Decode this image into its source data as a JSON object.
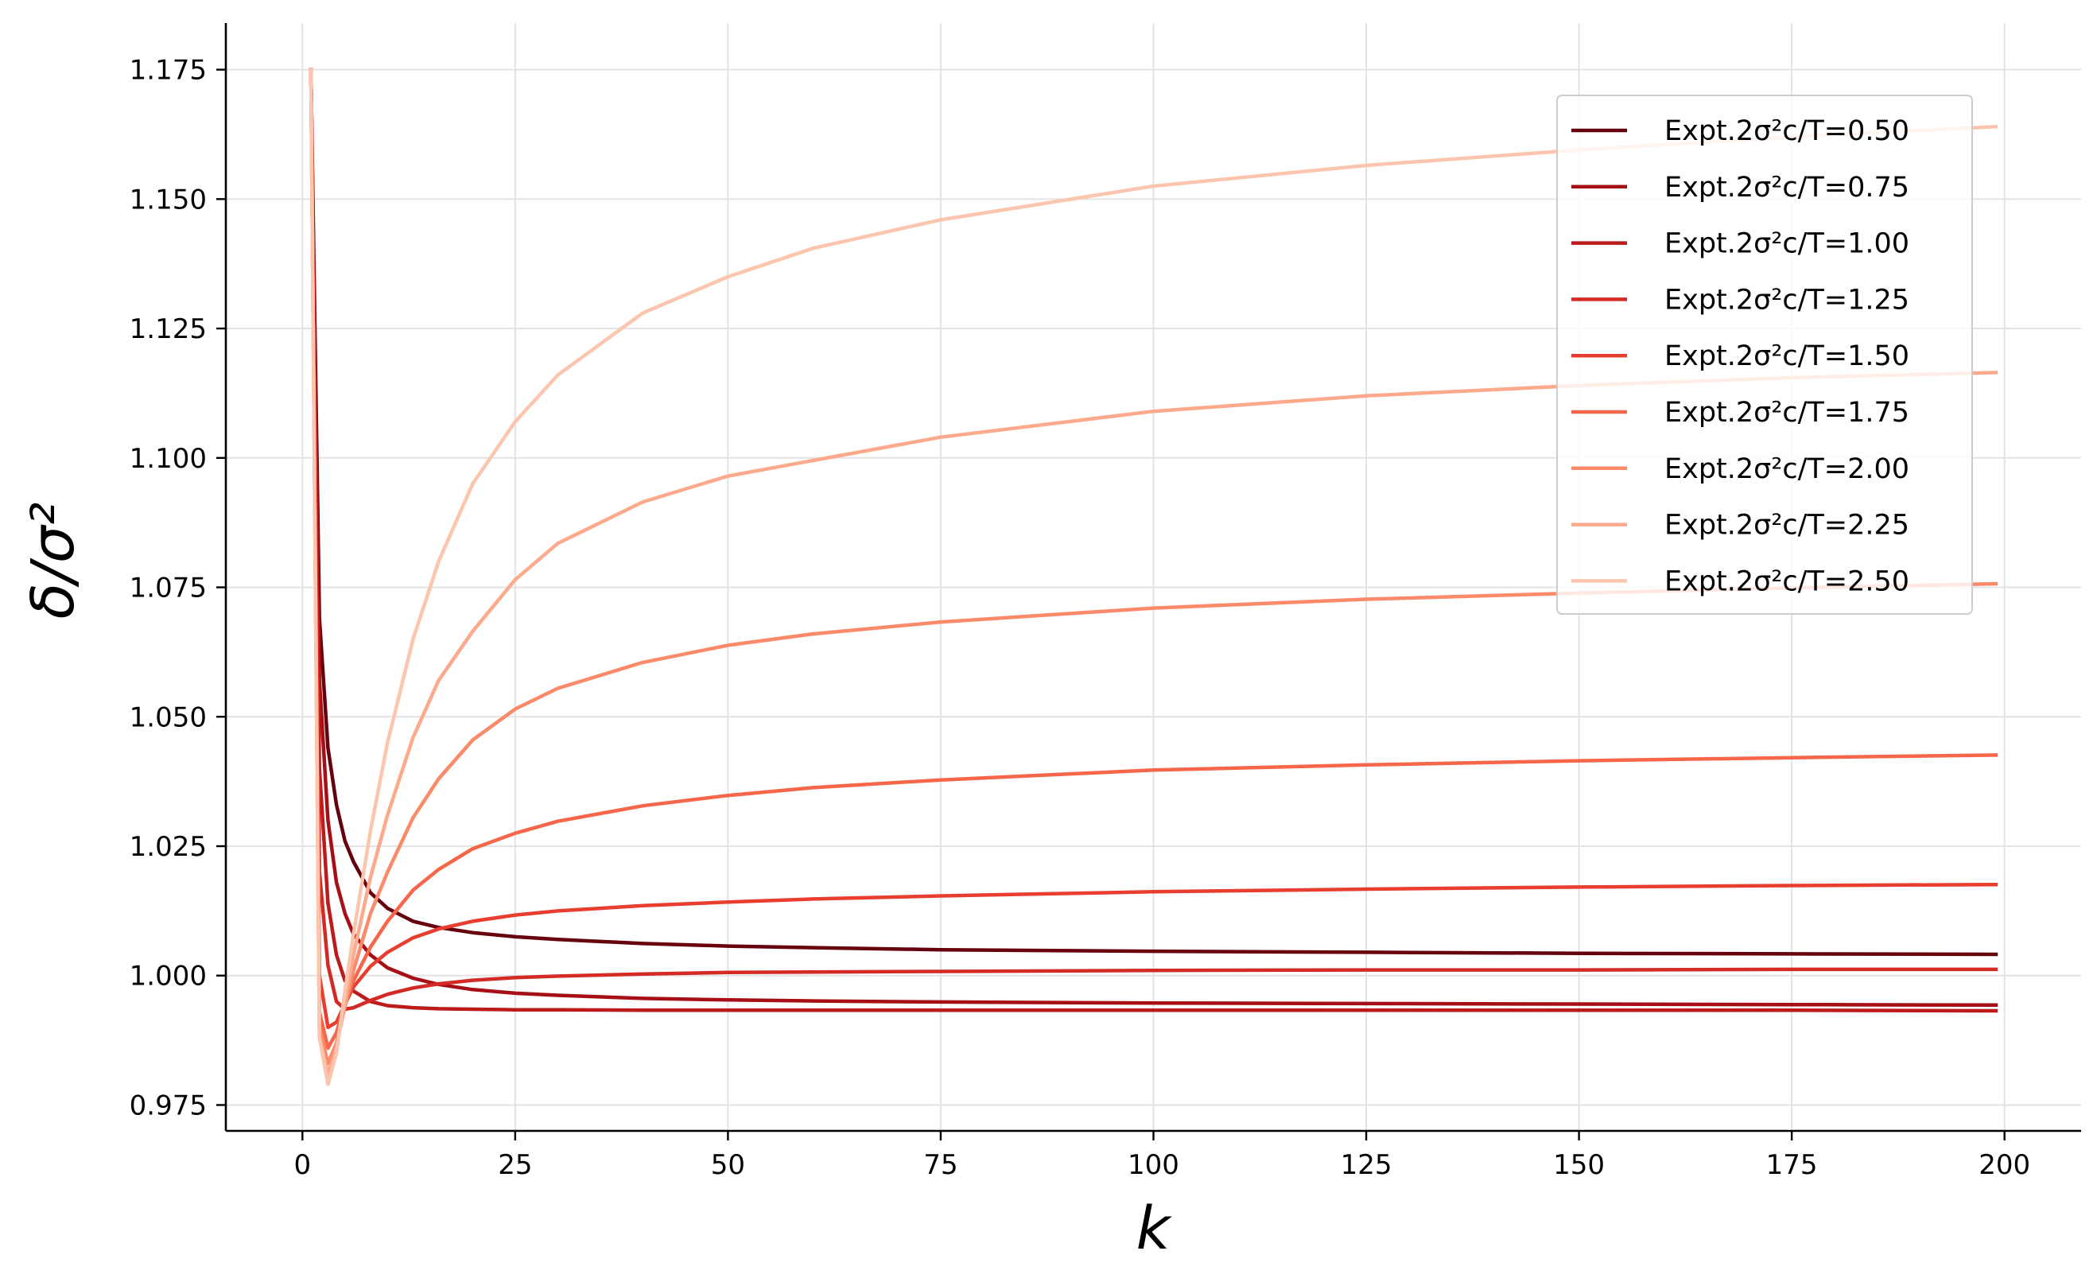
{
  "chart_data": {
    "type": "line",
    "xlabel": "k",
    "ylabel": "δ/σ²",
    "xlim": [
      -9,
      209
    ],
    "ylim": [
      0.97,
      1.184
    ],
    "x_ticks": [
      0,
      25,
      50,
      75,
      100,
      125,
      150,
      175,
      200
    ],
    "y_ticks": [
      0.975,
      1.0,
      1.025,
      1.05,
      1.075,
      1.1,
      1.125,
      1.15,
      1.175
    ],
    "y_tick_labels": [
      "0.975",
      "1.000",
      "1.025",
      "1.050",
      "1.075",
      "1.100",
      "1.125",
      "1.150",
      "1.175"
    ],
    "grid": true,
    "legend_position": "top-right",
    "series": [
      {
        "name": "Expt.2σ²c/T=0.50",
        "param": 0.5,
        "color": "#67000d",
        "x": [
          1,
          2,
          3,
          4,
          5,
          6,
          8,
          10,
          13,
          16,
          20,
          25,
          30,
          40,
          50,
          60,
          75,
          100,
          125,
          150,
          175,
          199
        ],
        "y": [
          1.175,
          1.069,
          1.044,
          1.033,
          1.026,
          1.022,
          1.016,
          1.013,
          1.0105,
          1.0093,
          1.0083,
          1.0075,
          1.007,
          1.0062,
          1.0057,
          1.0054,
          1.005,
          1.0047,
          1.0045,
          1.0043,
          1.0042,
          1.0041
        ]
      },
      {
        "name": "Expt.2σ²c/T=0.75",
        "param": 0.75,
        "color": "#a50f15",
        "x": [
          1,
          2,
          3,
          4,
          5,
          6,
          8,
          10,
          13,
          16,
          20,
          25,
          30,
          40,
          50,
          60,
          75,
          100,
          125,
          150,
          175,
          199
        ],
        "y": [
          1.175,
          1.057,
          1.03,
          1.018,
          1.012,
          1.008,
          1.004,
          1.0015,
          0.9995,
          0.9983,
          0.9973,
          0.9966,
          0.9962,
          0.9956,
          0.9953,
          0.9951,
          0.9949,
          0.9947,
          0.9946,
          0.9945,
          0.9944,
          0.9943
        ]
      },
      {
        "name": "Expt.2σ²c/T=1.00",
        "param": 1.0,
        "color": "#bd1a1c",
        "x": [
          1,
          2,
          3,
          4,
          5,
          6,
          8,
          10,
          13,
          16,
          20,
          25,
          30,
          40,
          50,
          60,
          75,
          100,
          125,
          150,
          175,
          199
        ],
        "y": [
          1.175,
          1.04,
          1.014,
          1.004,
          0.999,
          0.997,
          0.995,
          0.9942,
          0.9938,
          0.9936,
          0.9935,
          0.9934,
          0.9934,
          0.9933,
          0.9933,
          0.9933,
          0.9933,
          0.9933,
          0.9933,
          0.9933,
          0.9933,
          0.9932
        ]
      },
      {
        "name": "Expt.2σ²c/T=1.25",
        "param": 1.25,
        "color": "#d42a26",
        "x": [
          1,
          2,
          3,
          4,
          5,
          6,
          8,
          10,
          13,
          16,
          20,
          25,
          30,
          40,
          50,
          60,
          75,
          100,
          125,
          150,
          175,
          199
        ],
        "y": [
          1.175,
          1.02,
          1.002,
          0.995,
          0.9935,
          0.9938,
          0.9952,
          0.9964,
          0.9976,
          0.9984,
          0.9991,
          0.9996,
          0.9999,
          1.0003,
          1.0006,
          1.0007,
          1.0008,
          1.001,
          1.0011,
          1.0011,
          1.0012,
          1.0012
        ]
      },
      {
        "name": "Expt.2σ²c/T=1.50",
        "param": 1.5,
        "color": "#e83e30",
        "x": [
          1,
          2,
          3,
          4,
          5,
          6,
          8,
          10,
          13,
          16,
          20,
          25,
          30,
          40,
          50,
          60,
          75,
          100,
          125,
          150,
          175,
          199
        ],
        "y": [
          1.175,
          1.0,
          0.99,
          0.991,
          0.9945,
          0.9978,
          1.0018,
          1.0045,
          1.0073,
          1.009,
          1.0105,
          1.0117,
          1.0125,
          1.0135,
          1.0142,
          1.0148,
          1.0154,
          1.0162,
          1.0167,
          1.0171,
          1.0174,
          1.0176
        ]
      },
      {
        "name": "Expt.2σ²c/T=1.75",
        "param": 1.75,
        "color": "#f5664a",
        "x": [
          1,
          2,
          3,
          4,
          5,
          6,
          8,
          10,
          13,
          16,
          20,
          25,
          30,
          40,
          50,
          60,
          75,
          100,
          125,
          150,
          175,
          199
        ],
        "y": [
          1.175,
          0.993,
          0.986,
          0.989,
          0.9945,
          0.999,
          1.0055,
          1.0105,
          1.0165,
          1.0205,
          1.0245,
          1.0275,
          1.0298,
          1.0328,
          1.0348,
          1.0363,
          1.0378,
          1.0397,
          1.0407,
          1.0415,
          1.0421,
          1.0426
        ]
      },
      {
        "name": "Expt.2σ²c/T=2.00",
        "param": 2.0,
        "color": "#fb8a6a",
        "x": [
          1,
          2,
          3,
          4,
          5,
          6,
          8,
          10,
          13,
          16,
          20,
          25,
          30,
          40,
          50,
          60,
          75,
          100,
          125,
          150,
          175,
          199
        ],
        "y": [
          1.175,
          0.99,
          0.983,
          0.987,
          0.994,
          1.001,
          1.012,
          1.02,
          1.0305,
          1.038,
          1.0455,
          1.0515,
          1.0555,
          1.0605,
          1.0638,
          1.066,
          1.0683,
          1.071,
          1.0727,
          1.0739,
          1.0749,
          1.0757
        ]
      },
      {
        "name": "Expt.2σ²c/T=2.25",
        "param": 2.25,
        "color": "#fca98c",
        "x": [
          1,
          2,
          3,
          4,
          5,
          6,
          8,
          10,
          13,
          16,
          20,
          25,
          30,
          40,
          50,
          60,
          75,
          100,
          125,
          150,
          175,
          199
        ],
        "y": [
          1.175,
          0.988,
          0.981,
          0.986,
          0.995,
          1.004,
          1.019,
          1.031,
          1.046,
          1.057,
          1.0665,
          1.0765,
          1.0835,
          1.0915,
          1.0965,
          1.0995,
          1.104,
          1.109,
          1.112,
          1.114,
          1.1155,
          1.1165
        ]
      },
      {
        "name": "Expt.2σ²c/T=2.50",
        "param": 2.5,
        "color": "#fcc5ae",
        "x": [
          1,
          2,
          3,
          4,
          5,
          6,
          8,
          10,
          13,
          16,
          20,
          25,
          30,
          40,
          50,
          60,
          75,
          100,
          125,
          150,
          175,
          199
        ],
        "y": [
          1.175,
          0.988,
          0.979,
          0.985,
          0.997,
          1.008,
          1.028,
          1.045,
          1.065,
          1.08,
          1.095,
          1.107,
          1.116,
          1.128,
          1.135,
          1.1405,
          1.146,
          1.1525,
          1.1565,
          1.1595,
          1.162,
          1.164
        ]
      }
    ]
  }
}
